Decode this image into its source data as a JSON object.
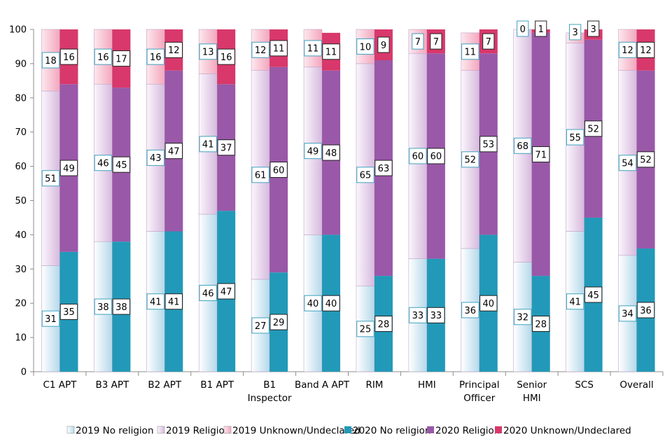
{
  "chart_data": {
    "type": "bar",
    "stacked": true,
    "title": "",
    "xlabel": "",
    "ylabel": "",
    "ylim": [
      0,
      100
    ],
    "yticks": [
      0,
      10,
      20,
      30,
      40,
      50,
      60,
      70,
      80,
      90,
      100
    ],
    "categories": [
      "C1 APT",
      "B3 APT",
      "B2 APT",
      "B1 APT",
      "B1 Inspector",
      "Band A APT",
      "RIM",
      "HMI",
      "Principal Officer",
      "Senior HMI",
      "SCS",
      "Overall"
    ],
    "category_lines": [
      [
        "C1 APT"
      ],
      [
        "B3 APT"
      ],
      [
        "B2 APT"
      ],
      [
        "B1 APT"
      ],
      [
        "B1",
        "Inspector"
      ],
      [
        "Band A APT"
      ],
      [
        "RIM"
      ],
      [
        "HMI"
      ],
      [
        "Principal",
        "Officer"
      ],
      [
        "Senior",
        "HMI"
      ],
      [
        "SCS"
      ],
      [
        "Overall"
      ]
    ],
    "groups": [
      {
        "year": "2019",
        "series": [
          {
            "name": "2019 No religion",
            "values": [
              31,
              38,
              41,
              46,
              27,
              40,
              25,
              33,
              36,
              32,
              41,
              34
            ]
          },
          {
            "name": "2019 Religion",
            "values": [
              51,
              46,
              43,
              41,
              61,
              49,
              65,
              60,
              52,
              68,
              55,
              54
            ]
          },
          {
            "name": "2019 Unknown/Undeclared",
            "values": [
              18,
              16,
              16,
              13,
              12,
              11,
              10,
              7,
              11,
              0,
              3,
              12
            ]
          }
        ]
      },
      {
        "year": "2020",
        "series": [
          {
            "name": "2020 No religion",
            "values": [
              35,
              38,
              41,
              47,
              29,
              40,
              28,
              33,
              40,
              28,
              45,
              36
            ]
          },
          {
            "name": "2020 Religion",
            "values": [
              49,
              45,
              47,
              37,
              60,
              48,
              63,
              60,
              53,
              71,
              52,
              52
            ]
          },
          {
            "name": "2020 Unknown/Undeclared",
            "values": [
              16,
              17,
              12,
              16,
              11,
              11,
              9,
              7,
              7,
              1,
              3,
              12
            ]
          }
        ]
      }
    ],
    "legend": {
      "position": "bottom",
      "entries": [
        "2019 No religion",
        "2019 Religion",
        "2019 Unknown/Undeclared",
        "2020 No religion",
        "2020 Religion",
        "2020 Unknown/Undeclared"
      ]
    },
    "colors": {
      "2019 No religion": "#cde7f2",
      "2019 Religion": "#dcc3e2",
      "2019 Unknown/Undeclared": "#f4aec2",
      "2020 No religion": "#2299b8",
      "2020 Religion": "#9a58a8",
      "2020 Unknown/Undeclared": "#d8386b"
    },
    "label_border_2019": "#3fa3bf",
    "label_border_2020": "#222222"
  }
}
